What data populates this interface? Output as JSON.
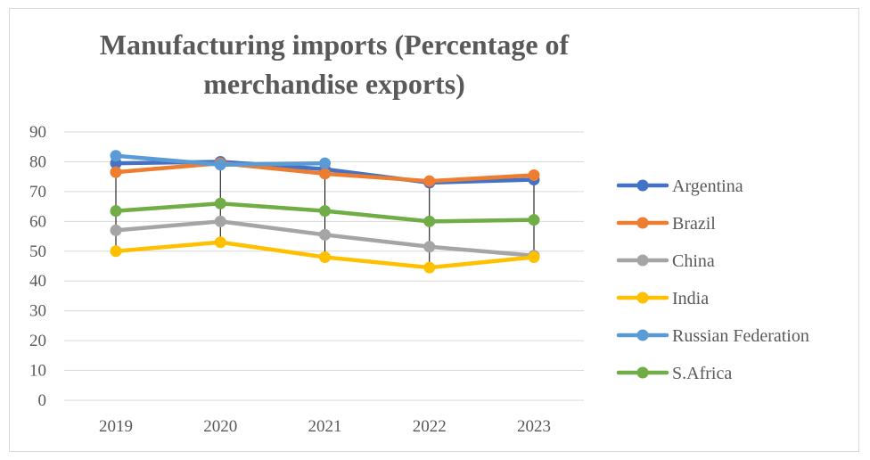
{
  "chart_data": {
    "type": "line",
    "title": "Manufacturing imports (Percentage of merchandise exports)",
    "xlabel": "",
    "ylabel": "",
    "categories": [
      "2019",
      "2020",
      "2021",
      "2022",
      "2023"
    ],
    "ylim": [
      0,
      90
    ],
    "yticks": [
      0,
      10,
      20,
      30,
      40,
      50,
      60,
      70,
      80,
      90
    ],
    "grid": true,
    "legend_position": "right",
    "drop_lines": true,
    "series": [
      {
        "name": "Argentina",
        "color": "#4472c4",
        "values": [
          79.5,
          80,
          77.5,
          73,
          74
        ]
      },
      {
        "name": "Brazil",
        "color": "#ed7d31",
        "values": [
          76.5,
          79.5,
          76,
          73.5,
          75.5
        ]
      },
      {
        "name": "China",
        "color": "#a5a5a5",
        "values": [
          57,
          60,
          55.5,
          51.5,
          48.5
        ]
      },
      {
        "name": "India",
        "color": "#ffc000",
        "values": [
          50,
          53,
          48,
          44.5,
          48
        ]
      },
      {
        "name": "Russian Federation",
        "color": "#5b9bd5",
        "values": [
          82,
          79,
          79.5,
          null,
          null
        ]
      },
      {
        "name": "S.Africa",
        "color": "#70ad47",
        "values": [
          63.5,
          66,
          63.5,
          60,
          60.5
        ]
      }
    ]
  }
}
